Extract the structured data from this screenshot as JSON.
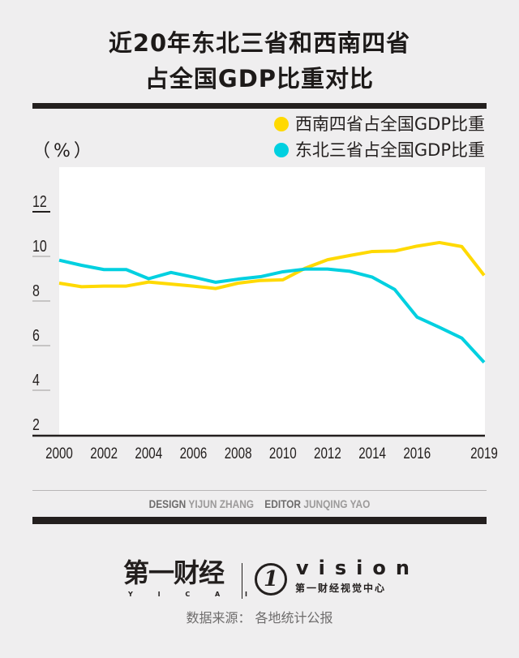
{
  "title_line1": "近20年东北三省和西南四省",
  "title_line2": "占全国GDP比重对比",
  "unit_label": "（%）",
  "credits": {
    "design_label": "DESIGN",
    "designer": "YIJUN ZHANG",
    "editor_label": "EDITOR",
    "editor": "JUNQING YAO"
  },
  "logo": {
    "main": "第一财经",
    "main_sub": "Y I C A I",
    "vision": "vision",
    "vision_sub": "第一财经视觉中心"
  },
  "source": "数据来源：  各地统计公报",
  "chart_data": {
    "type": "line",
    "title": "近20年东北三省和西南四省占全国GDP比重对比",
    "ylabel": "（%）",
    "ylim": [
      2,
      13
    ],
    "yticks": [
      2,
      4,
      6,
      8,
      10,
      12
    ],
    "xlim": [
      2000,
      2019
    ],
    "xticks": [
      2000,
      2002,
      2004,
      2006,
      2008,
      2010,
      2012,
      2014,
      2016,
      2019
    ],
    "legend_position": "top-right",
    "x": [
      2000,
      2001,
      2002,
      2003,
      2004,
      2005,
      2006,
      2007,
      2008,
      2009,
      2010,
      2011,
      2012,
      2013,
      2014,
      2015,
      2016,
      2017,
      2018,
      2019
    ],
    "series": [
      {
        "name": "西南四省占全国GDP比重",
        "color": "#ffd900",
        "values": [
          8.8,
          8.64,
          8.67,
          8.67,
          8.85,
          8.76,
          8.67,
          8.56,
          8.8,
          8.92,
          8.95,
          9.47,
          9.85,
          10.04,
          10.22,
          10.24,
          10.46,
          10.62,
          10.44,
          9.15
        ]
      },
      {
        "name": "东北三省占全国GDP比重",
        "color": "#00d0e0",
        "values": [
          9.83,
          9.6,
          9.41,
          9.41,
          9.0,
          9.28,
          9.07,
          8.84,
          8.98,
          9.09,
          9.31,
          9.43,
          9.43,
          9.33,
          9.07,
          8.52,
          7.28,
          6.82,
          6.34,
          5.25
        ]
      }
    ]
  }
}
